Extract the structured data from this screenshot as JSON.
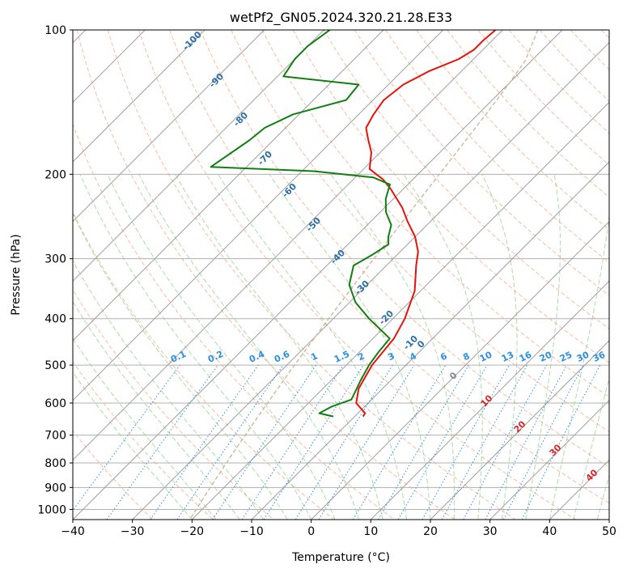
{
  "chart_data": {
    "type": "skew-t log-p sounding",
    "title": "wetPf2_GN05.2024.320.21.28.E33",
    "xlabel": "Temperature (°C)",
    "ylabel": "Pressure (hPa)",
    "xlim": [
      -40,
      50
    ],
    "ylim_hpa": [
      1050,
      100
    ],
    "x_ticks": [
      -40,
      -30,
      -20,
      -10,
      0,
      10,
      20,
      30,
      40,
      50
    ],
    "y_ticks": [
      100,
      200,
      300,
      400,
      500,
      600,
      700,
      800,
      900,
      1000
    ],
    "grid": true,
    "colors": {
      "temperature": "#e8120c",
      "dewpoint": "#127e12",
      "isotherm": "#9e9e9e",
      "dry_adiabat": "#f4a582",
      "moist_adiabat": "#8fcf8f",
      "mixing_ratio": "#2d8fe0",
      "isotherm_label": "#2d6fa8",
      "zero_isotherm": "#cbb79a",
      "dry_adiabat_label": "#d62728"
    },
    "series": [
      {
        "key": "temperature",
        "pressure_hpa": [
          640,
          630,
          600,
          560,
          500,
          440,
          400,
          350,
          310,
          290,
          270,
          250,
          235,
          215,
          205,
          200,
          195,
          180,
          168,
          160,
          150,
          140,
          130,
          122,
          115,
          110,
          105,
          100
        ],
        "temperature_c": [
          -8.6,
          -8.8,
          -12,
          -14,
          -15.7,
          -16.5,
          -18,
          -21,
          -25,
          -27,
          -30,
          -34,
          -37,
          -42,
          -45,
          -47,
          -49,
          -51.5,
          -54.5,
          -56.5,
          -57.5,
          -58.2,
          -57.5,
          -55.5,
          -52.5,
          -51.5,
          -51.5,
          -51.2
        ]
      },
      {
        "key": "dewpoint",
        "pressure_hpa": [
          640,
          630,
          610,
          590,
          570,
          540,
          500,
          470,
          440,
          400,
          370,
          340,
          310,
          295,
          280,
          270,
          255,
          240,
          225,
          210,
          203,
          197,
          193,
          170,
          160,
          150,
          140,
          130,
          125,
          115,
          108,
          100
        ],
        "temperature_c": [
          -13.6,
          -16.5,
          -15.5,
          -13.4,
          -14,
          -15,
          -16.2,
          -16.8,
          -17.2,
          -24,
          -29,
          -33,
          -35.5,
          -34.2,
          -33.2,
          -34.5,
          -36,
          -39,
          -41.3,
          -43,
          -47,
          -58,
          -76,
          -74,
          -73.5,
          -71,
          -64.5,
          -65,
          -79,
          -80,
          -80,
          -79
        ]
      }
    ],
    "isotherm_labels": [
      "-100",
      "-90",
      "-80",
      "-70",
      "-60",
      "-50",
      "-40",
      "-30",
      "-20",
      "-10",
      "0"
    ],
    "mixing_ratio_labels": [
      "0.1",
      "0.2",
      "0.4",
      "0.6",
      "1",
      "1.5",
      "2",
      "3",
      "4",
      "6",
      "8",
      "10",
      "13",
      "16",
      "20",
      "25",
      "30",
      "36"
    ],
    "dry_adiabat_labels": [
      "10",
      "20",
      "30",
      "40"
    ]
  }
}
